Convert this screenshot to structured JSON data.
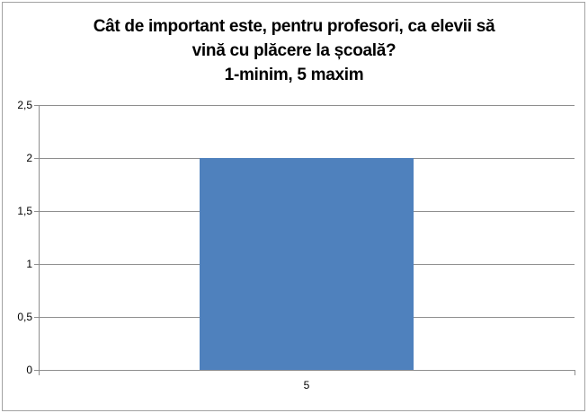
{
  "chart": {
    "title_lines": [
      "Cât de important este, pentru profesori, ca elevii să",
      "vină cu plăcere la școală?",
      "1-minim, 5 maxim"
    ]
  },
  "chart_data": {
    "type": "bar",
    "title": "Cât de important este, pentru profesori, ca elevii să vină cu plăcere la școală? 1-minim, 5 maxim",
    "categories": [
      "5"
    ],
    "values": [
      2
    ],
    "xlabel": "",
    "ylabel": "",
    "ylim": [
      0,
      2.5
    ],
    "ytick_step": 0.5,
    "ytick_labels": [
      "0",
      "0,5",
      "1",
      "1,5",
      "2",
      "2,5"
    ],
    "grid": true,
    "legend": "none",
    "bar_color": "#4F81BD",
    "gridline_color": "#8E8E8E",
    "axis_color": "#8E8E8E",
    "gap_width_ratio": 1.5
  },
  "colors": {
    "background": "#FFFFFF",
    "border": "#A3A3A3",
    "text": "#000000"
  }
}
